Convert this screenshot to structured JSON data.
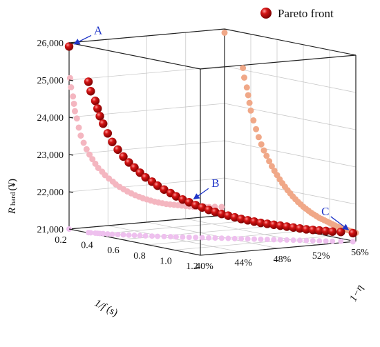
{
  "chart_data": {
    "type": "scatter",
    "projection": "3d",
    "legend": {
      "label": "Pareto front",
      "placement": "top-right"
    },
    "axes": {
      "x": {
        "label_italic": "1/f",
        "label_unit": " (s)",
        "ticks": [
          "0.2",
          "0.4",
          "0.6",
          "0.8",
          "1.0",
          "1.2"
        ],
        "range": [
          0.2,
          1.2
        ]
      },
      "y": {
        "label": "1−η",
        "ticks": [
          "40%",
          "44%",
          "48%",
          "52%",
          "56%"
        ],
        "range": [
          0.4,
          0.56
        ]
      },
      "z": {
        "label_italic": "R",
        "label_sub": " hard",
        "label_unit": "(¥)",
        "ticks": [
          "21,000",
          "22,000",
          "23,000",
          "24,000",
          "25,000",
          "26,000"
        ],
        "range": [
          21000,
          26000
        ]
      }
    },
    "grid": true,
    "series": [
      {
        "name": "Pareto front",
        "color": "#c40000",
        "points": [
          [
            0.2,
            0.4,
            25900
          ],
          [
            0.34,
            0.401,
            25050
          ],
          [
            0.35,
            0.402,
            24800
          ],
          [
            0.37,
            0.404,
            24550
          ],
          [
            0.38,
            0.405,
            24350
          ],
          [
            0.39,
            0.406,
            24150
          ],
          [
            0.4,
            0.408,
            23950
          ],
          [
            0.42,
            0.41,
            23700
          ],
          [
            0.44,
            0.412,
            23480
          ],
          [
            0.46,
            0.415,
            23280
          ],
          [
            0.48,
            0.418,
            23100
          ],
          [
            0.5,
            0.421,
            22950
          ],
          [
            0.52,
            0.424,
            22820
          ],
          [
            0.54,
            0.427,
            22690
          ],
          [
            0.56,
            0.43,
            22570
          ],
          [
            0.58,
            0.434,
            22460
          ],
          [
            0.6,
            0.437,
            22360
          ],
          [
            0.62,
            0.441,
            22260
          ],
          [
            0.64,
            0.445,
            22170
          ],
          [
            0.66,
            0.448,
            22090
          ],
          [
            0.68,
            0.452,
            22010
          ],
          [
            0.7,
            0.456,
            21940
          ],
          [
            0.72,
            0.46,
            21870
          ],
          [
            0.74,
            0.464,
            21810
          ],
          [
            0.76,
            0.468,
            21750
          ],
          [
            0.78,
            0.472,
            21700
          ],
          [
            0.8,
            0.476,
            21650
          ],
          [
            0.82,
            0.48,
            21610
          ],
          [
            0.84,
            0.484,
            21570
          ],
          [
            0.86,
            0.488,
            21530
          ],
          [
            0.88,
            0.492,
            21500
          ],
          [
            0.9,
            0.496,
            21470
          ],
          [
            0.92,
            0.5,
            21440
          ],
          [
            0.94,
            0.504,
            21420
          ],
          [
            0.96,
            0.508,
            21400
          ],
          [
            0.98,
            0.512,
            21380
          ],
          [
            1.0,
            0.516,
            21360
          ],
          [
            1.02,
            0.52,
            21340
          ],
          [
            1.04,
            0.524,
            21320
          ],
          [
            1.06,
            0.528,
            21300
          ],
          [
            1.08,
            0.532,
            21290
          ],
          [
            1.1,
            0.536,
            21280
          ],
          [
            1.12,
            0.54,
            21270
          ],
          [
            1.14,
            0.544,
            21260
          ],
          [
            1.16,
            0.55,
            21250
          ],
          [
            1.2,
            0.557,
            21230
          ]
        ]
      },
      {
        "projection_of": "Pareto front",
        "plane": "x-z (back wall)",
        "color": "#f0a888"
      },
      {
        "projection_of": "Pareto front",
        "plane": "y-z (back wall)",
        "color": "#f4b6c0"
      },
      {
        "projection_of": "Pareto front",
        "plane": "x-y (floor)",
        "color": "#eec0ee"
      }
    ],
    "annotations": [
      {
        "text": "A",
        "point": [
          0.2,
          0.4,
          25900
        ]
      },
      {
        "text": "B",
        "point": [
          0.7,
          0.456,
          21940
        ]
      },
      {
        "text": "C",
        "point": [
          1.2,
          0.557,
          21230
        ]
      }
    ]
  }
}
